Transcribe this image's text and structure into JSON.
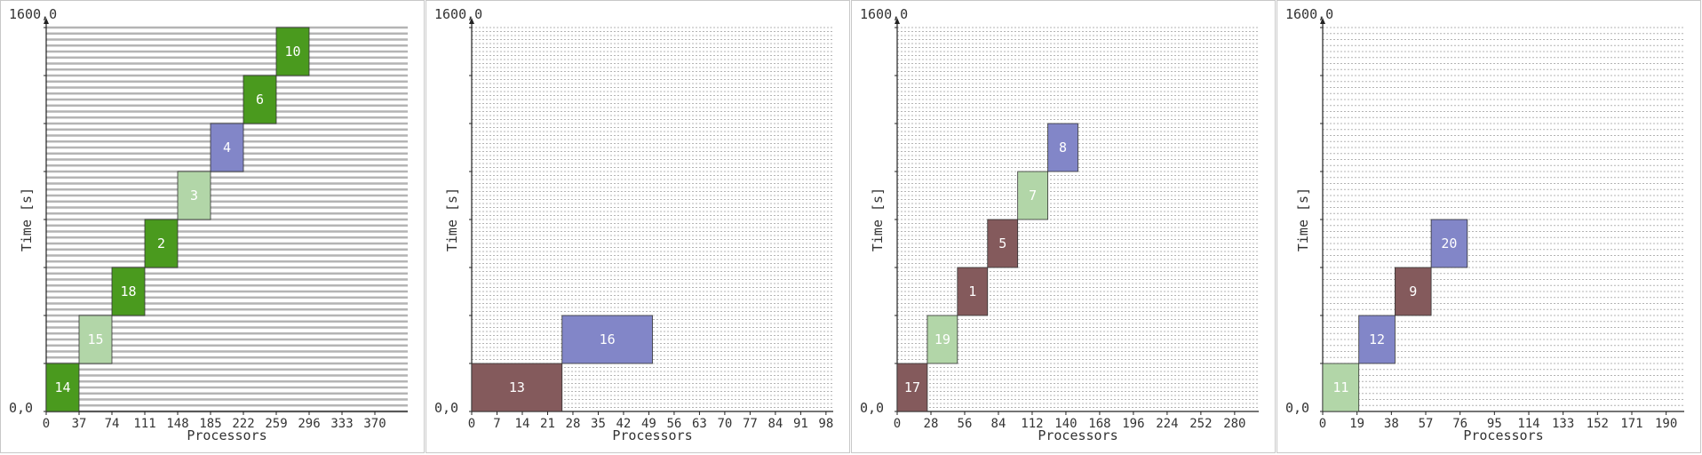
{
  "chart_data": [
    {
      "type": "gantt",
      "xlabel": "Processors",
      "ylabel": "Time [s]",
      "origin_label": "0,0",
      "top_label": "1600,0",
      "xlim": [
        0,
        407
      ],
      "ylim": [
        0,
        1600
      ],
      "xticks": [
        0,
        37,
        74,
        111,
        148,
        185,
        222,
        259,
        296,
        333,
        370
      ],
      "grid_rows": 64,
      "grid_style": "solid",
      "tasks": [
        {
          "id": "14",
          "x0": 0,
          "x1": 37,
          "y0": 0,
          "y1": 200,
          "color": "#4a9a1e"
        },
        {
          "id": "15",
          "x0": 37,
          "x1": 74,
          "y0": 200,
          "y1": 400,
          "color": "#b2d6a8"
        },
        {
          "id": "18",
          "x0": 74,
          "x1": 111,
          "y0": 400,
          "y1": 600,
          "color": "#4a9a1e"
        },
        {
          "id": "2",
          "x0": 111,
          "x1": 148,
          "y0": 600,
          "y1": 800,
          "color": "#4a9a1e"
        },
        {
          "id": "3",
          "x0": 148,
          "x1": 185,
          "y0": 800,
          "y1": 1000,
          "color": "#b2d6a8"
        },
        {
          "id": "4",
          "x0": 185,
          "x1": 222,
          "y0": 1000,
          "y1": 1200,
          "color": "#8286c8"
        },
        {
          "id": "6",
          "x0": 222,
          "x1": 259,
          "y0": 1200,
          "y1": 1400,
          "color": "#4a9a1e"
        },
        {
          "id": "10",
          "x0": 259,
          "x1": 296,
          "y0": 1400,
          "y1": 1600,
          "color": "#4a9a1e"
        }
      ]
    },
    {
      "type": "gantt",
      "xlabel": "Processors",
      "ylabel": "Time [s]",
      "origin_label": "0,0",
      "top_label": "1600,0",
      "xlim": [
        0,
        100
      ],
      "ylim": [
        0,
        1600
      ],
      "xticks": [
        0,
        7,
        14,
        21,
        28,
        35,
        42,
        49,
        56,
        63,
        70,
        77,
        84,
        91,
        98
      ],
      "grid_rows": 96,
      "grid_style": "dashed",
      "tasks": [
        {
          "id": "13",
          "x0": 0,
          "x1": 25,
          "y0": 0,
          "y1": 200,
          "color": "#845a5c"
        },
        {
          "id": "16",
          "x0": 25,
          "x1": 50,
          "y0": 200,
          "y1": 400,
          "color": "#8286c8"
        }
      ]
    },
    {
      "type": "gantt",
      "xlabel": "Processors",
      "ylabel": "Time [s]",
      "origin_label": "0,0",
      "top_label": "1600,0",
      "xlim": [
        0,
        300
      ],
      "ylim": [
        0,
        1600
      ],
      "xticks": [
        0,
        28,
        56,
        84,
        112,
        140,
        168,
        196,
        224,
        252,
        280
      ],
      "grid_rows": 96,
      "grid_style": "dashed",
      "tasks": [
        {
          "id": "17",
          "x0": 0,
          "x1": 25,
          "y0": 0,
          "y1": 200,
          "color": "#845a5c"
        },
        {
          "id": "19",
          "x0": 25,
          "x1": 50,
          "y0": 200,
          "y1": 400,
          "color": "#b2d6a8"
        },
        {
          "id": "1",
          "x0": 50,
          "x1": 75,
          "y0": 400,
          "y1": 600,
          "color": "#845a5c"
        },
        {
          "id": "5",
          "x0": 75,
          "x1": 100,
          "y0": 600,
          "y1": 800,
          "color": "#845a5c"
        },
        {
          "id": "7",
          "x0": 100,
          "x1": 125,
          "y0": 800,
          "y1": 1000,
          "color": "#b2d6a8"
        },
        {
          "id": "8",
          "x0": 125,
          "x1": 150,
          "y0": 1000,
          "y1": 1200,
          "color": "#8286c8"
        }
      ]
    },
    {
      "type": "gantt",
      "xlabel": "Processors",
      "ylabel": "Time [s]",
      "origin_label": "0,0",
      "top_label": "1600,0",
      "xlim": [
        0,
        200
      ],
      "ylim": [
        0,
        1600
      ],
      "xticks": [
        0,
        19,
        38,
        57,
        76,
        95,
        114,
        133,
        152,
        171,
        190
      ],
      "grid_rows": 64,
      "grid_style": "dashed",
      "tasks": [
        {
          "id": "11",
          "x0": 0,
          "x1": 20,
          "y0": 0,
          "y1": 200,
          "color": "#b2d6a8"
        },
        {
          "id": "12",
          "x0": 20,
          "x1": 40,
          "y0": 200,
          "y1": 400,
          "color": "#8286c8"
        },
        {
          "id": "9",
          "x0": 40,
          "x1": 60,
          "y0": 400,
          "y1": 600,
          "color": "#845a5c"
        },
        {
          "id": "20",
          "x0": 60,
          "x1": 80,
          "y0": 600,
          "y1": 800,
          "color": "#8286c8"
        }
      ]
    }
  ]
}
